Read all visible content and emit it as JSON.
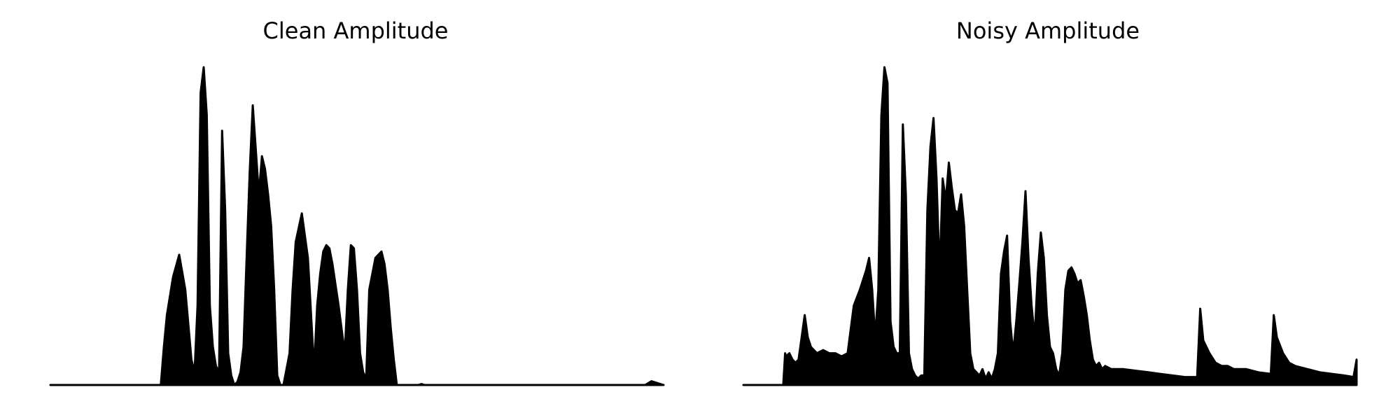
{
  "chart_data": [
    {
      "type": "area",
      "title": "Clean Amplitude",
      "xlabel": "",
      "ylabel": "",
      "axes_visible": false,
      "grid": false,
      "ylim": [
        0,
        1.0
      ],
      "x": [
        0.0,
        0.1,
        0.18,
        0.185,
        0.19,
        0.2,
        0.21,
        0.22,
        0.23,
        0.235,
        0.24,
        0.245,
        0.25,
        0.255,
        0.26,
        0.265,
        0.27,
        0.275,
        0.28,
        0.285,
        0.29,
        0.295,
        0.3,
        0.305,
        0.31,
        0.315,
        0.32,
        0.325,
        0.33,
        0.34,
        0.345,
        0.35,
        0.355,
        0.36,
        0.365,
        0.37,
        0.375,
        0.38,
        0.385,
        0.39,
        0.395,
        0.4,
        0.41,
        0.42,
        0.43,
        0.435,
        0.44,
        0.445,
        0.45,
        0.455,
        0.46,
        0.47,
        0.48,
        0.485,
        0.49,
        0.495,
        0.5,
        0.505,
        0.51,
        0.515,
        0.52,
        0.53,
        0.54,
        0.545,
        0.55,
        0.555,
        0.56,
        0.565,
        0.57,
        0.58,
        0.59,
        0.6,
        0.605,
        0.61,
        0.615,
        0.62,
        0.63,
        0.64,
        0.65,
        0.66,
        0.67,
        0.68,
        0.69,
        0.7,
        0.8,
        0.9,
        0.97,
        0.98,
        1.0
      ],
      "values": [
        0.0,
        0.0,
        0.0,
        0.12,
        0.22,
        0.34,
        0.41,
        0.3,
        0.08,
        0.04,
        0.25,
        0.92,
        1.0,
        0.85,
        0.25,
        0.12,
        0.06,
        0.04,
        0.8,
        0.55,
        0.1,
        0.03,
        0.0,
        0.01,
        0.04,
        0.12,
        0.4,
        0.67,
        0.88,
        0.6,
        0.72,
        0.68,
        0.6,
        0.5,
        0.3,
        0.03,
        0.0,
        0.0,
        0.05,
        0.1,
        0.3,
        0.45,
        0.54,
        0.4,
        0.05,
        0.25,
        0.35,
        0.42,
        0.44,
        0.43,
        0.38,
        0.25,
        0.1,
        0.3,
        0.44,
        0.43,
        0.3,
        0.1,
        0.04,
        0.02,
        0.3,
        0.4,
        0.42,
        0.38,
        0.3,
        0.18,
        0.08,
        0.0,
        0.0,
        0.0,
        0.0,
        0.0,
        0.003,
        0.0,
        0.0,
        0.0,
        0.0,
        0.0,
        0.0,
        0.0,
        0.0,
        0.0,
        0.0,
        0.0,
        0.0,
        0.0,
        0.0,
        0.012,
        0.0
      ]
    },
    {
      "type": "area",
      "title": "Noisy Amplitude",
      "xlabel": "",
      "ylabel": "",
      "axes_visible": false,
      "grid": false,
      "ylim": [
        0,
        1.0
      ],
      "x": [
        0.0,
        0.065,
        0.068,
        0.07,
        0.075,
        0.08,
        0.085,
        0.09,
        0.1,
        0.105,
        0.11,
        0.12,
        0.13,
        0.14,
        0.15,
        0.16,
        0.17,
        0.18,
        0.19,
        0.2,
        0.205,
        0.21,
        0.215,
        0.22,
        0.225,
        0.23,
        0.235,
        0.24,
        0.245,
        0.25,
        0.255,
        0.26,
        0.265,
        0.27,
        0.275,
        0.28,
        0.285,
        0.29,
        0.295,
        0.3,
        0.305,
        0.31,
        0.315,
        0.32,
        0.325,
        0.33,
        0.335,
        0.34,
        0.345,
        0.35,
        0.355,
        0.36,
        0.365,
        0.37,
        0.375,
        0.38,
        0.385,
        0.39,
        0.395,
        0.4,
        0.405,
        0.41,
        0.415,
        0.42,
        0.425,
        0.43,
        0.435,
        0.44,
        0.445,
        0.45,
        0.455,
        0.46,
        0.465,
        0.47,
        0.475,
        0.48,
        0.485,
        0.49,
        0.495,
        0.5,
        0.505,
        0.51,
        0.515,
        0.52,
        0.525,
        0.53,
        0.535,
        0.54,
        0.545,
        0.55,
        0.555,
        0.56,
        0.565,
        0.57,
        0.575,
        0.58,
        0.585,
        0.59,
        0.6,
        0.62,
        0.64,
        0.66,
        0.68,
        0.7,
        0.72,
        0.74,
        0.745,
        0.75,
        0.76,
        0.77,
        0.78,
        0.79,
        0.8,
        0.82,
        0.84,
        0.86,
        0.865,
        0.87,
        0.88,
        0.89,
        0.9,
        0.92,
        0.94,
        0.96,
        0.98,
        0.995,
        1.0
      ],
      "values": [
        0.0,
        0.0,
        0.1,
        0.09,
        0.1,
        0.08,
        0.07,
        0.08,
        0.22,
        0.15,
        0.12,
        0.1,
        0.11,
        0.1,
        0.1,
        0.09,
        0.1,
        0.25,
        0.3,
        0.36,
        0.4,
        0.3,
        0.15,
        0.3,
        0.85,
        1.0,
        0.95,
        0.2,
        0.12,
        0.1,
        0.1,
        0.82,
        0.6,
        0.1,
        0.05,
        0.03,
        0.02,
        0.03,
        0.03,
        0.55,
        0.75,
        0.84,
        0.65,
        0.35,
        0.65,
        0.58,
        0.7,
        0.62,
        0.55,
        0.54,
        0.6,
        0.5,
        0.3,
        0.1,
        0.05,
        0.04,
        0.03,
        0.05,
        0.02,
        0.04,
        0.02,
        0.05,
        0.1,
        0.35,
        0.42,
        0.47,
        0.2,
        0.1,
        0.2,
        0.32,
        0.45,
        0.61,
        0.4,
        0.25,
        0.15,
        0.35,
        0.48,
        0.4,
        0.22,
        0.12,
        0.1,
        0.05,
        0.03,
        0.1,
        0.3,
        0.36,
        0.37,
        0.35,
        0.32,
        0.33,
        0.28,
        0.22,
        0.14,
        0.08,
        0.06,
        0.07,
        0.05,
        0.06,
        0.05,
        0.05,
        0.045,
        0.04,
        0.035,
        0.03,
        0.025,
        0.025,
        0.24,
        0.14,
        0.1,
        0.07,
        0.06,
        0.06,
        0.05,
        0.05,
        0.04,
        0.035,
        0.22,
        0.15,
        0.1,
        0.07,
        0.06,
        0.05,
        0.04,
        0.035,
        0.03,
        0.025,
        0.08
      ]
    }
  ]
}
